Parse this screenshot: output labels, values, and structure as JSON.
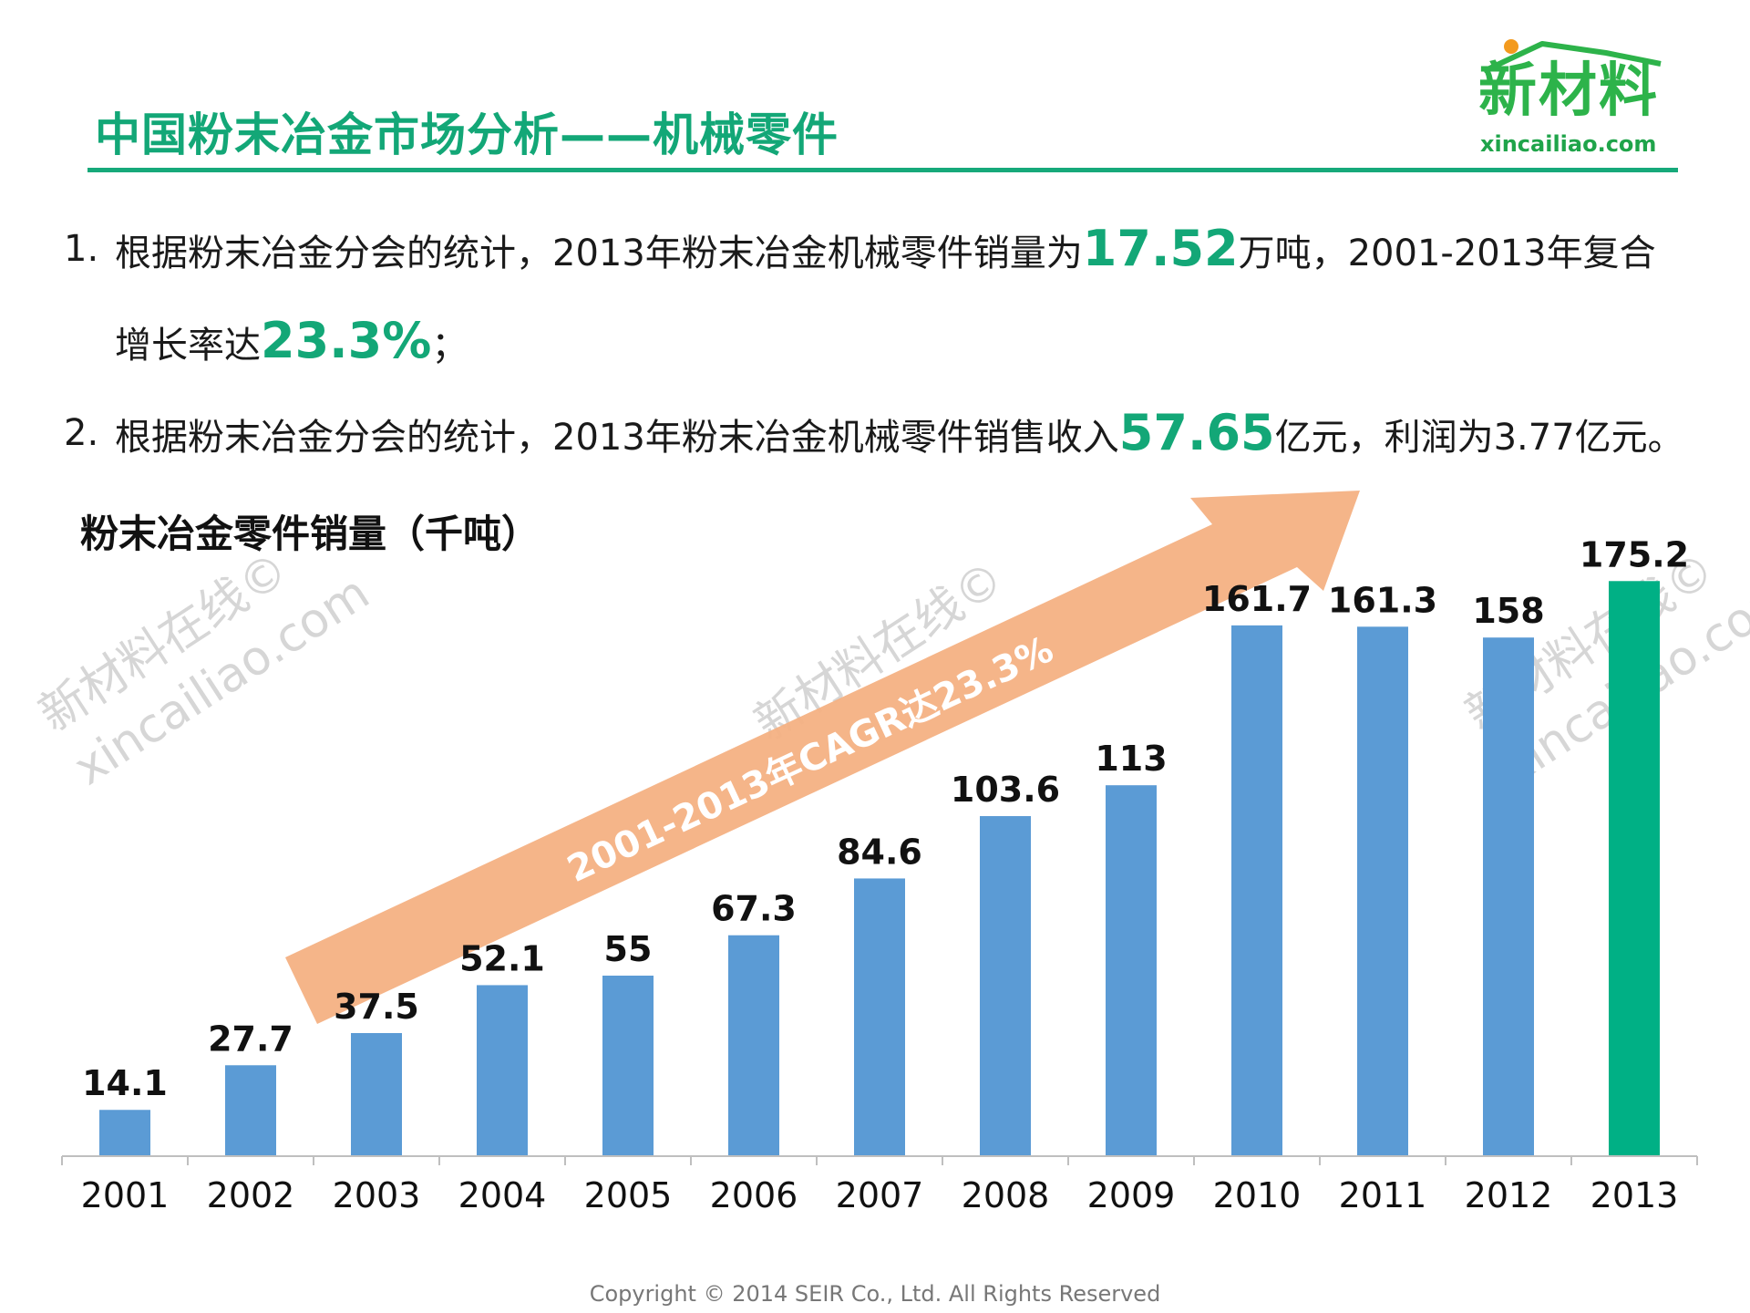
{
  "header": {
    "title": "中国粉末冶金市场分析——机械零件",
    "logo_text": "新材料",
    "logo_url": "xincailiao.com"
  },
  "bullets": [
    {
      "num": "1.",
      "pre": "根据粉末冶金分会的统计，2013年粉末冶金机械零件销量为",
      "hl1": "17.52",
      "mid": "万吨，2001-2013年复合增长率达",
      "hl2": "23.3%",
      "post": "；"
    },
    {
      "num": "2.",
      "pre": "根据粉末冶金分会的统计，2013年粉末冶金机械零件销售收入",
      "hl1": "57.65",
      "post": "亿元，利润为3.77亿元。"
    }
  ],
  "watermark": {
    "line1": "新材料在线©",
    "line2": "xincailiao.com"
  },
  "chart_data": {
    "type": "bar",
    "title": "粉末冶金零件销量（千吨）",
    "categories": [
      "2001",
      "2002",
      "2003",
      "2004",
      "2005",
      "2006",
      "2007",
      "2008",
      "2009",
      "2010",
      "2011",
      "2012",
      "2013"
    ],
    "values": [
      14.1,
      27.7,
      37.5,
      52.1,
      55,
      67.3,
      84.6,
      103.6,
      113,
      161.7,
      161.3,
      158,
      175.2
    ],
    "data_labels": [
      "14.1",
      "27.7",
      "37.5",
      "52.1",
      "55",
      "67.3",
      "84.6",
      "103.6",
      "113",
      "161.7",
      "161.3",
      "158",
      "175.2"
    ],
    "highlight_index": 12,
    "colors": {
      "bar": "#5b9bd5",
      "highlight": "#00b085",
      "arrow": "#f4b183",
      "axis": "#bfbfbf"
    },
    "annotation": "2001-2013年CAGR达23.3%",
    "ylim": [
      0,
      180
    ],
    "xlabel": "",
    "ylabel": ""
  },
  "footer": {
    "copyright": "Copyright © 2014  SEIR Co., Ltd. All Rights Reserved"
  }
}
